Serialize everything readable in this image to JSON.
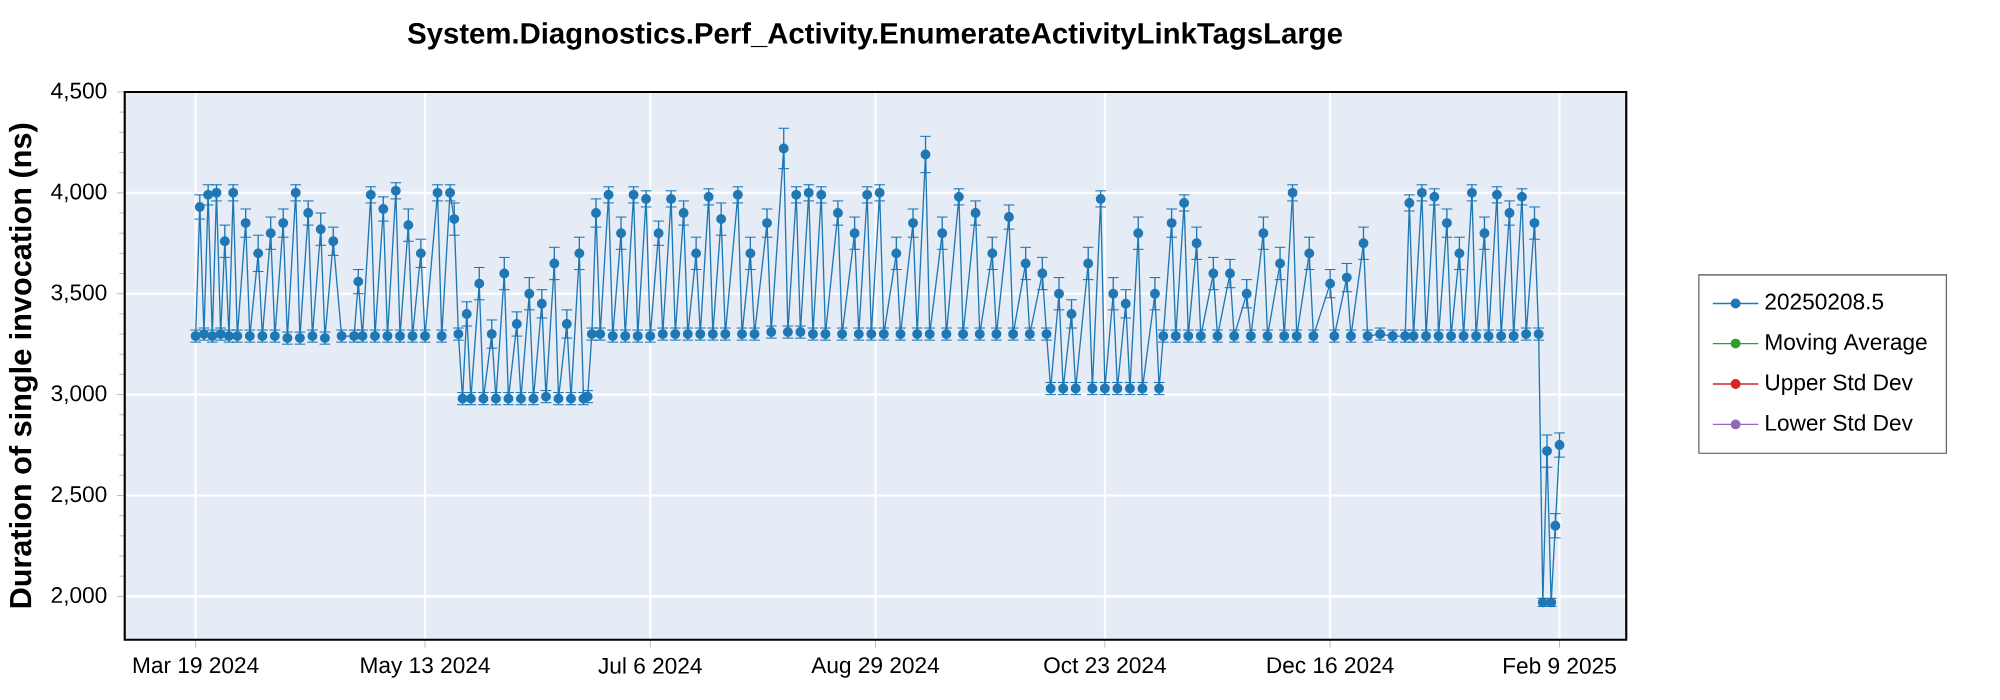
{
  "chart_data": {
    "type": "line",
    "title": "System.Diagnostics.Perf_Activity.EnumerateActivityLinkTagsLarge",
    "ylabel": "Duration of single invocation (ns)",
    "xlim": [
      "2024-03-02",
      "2025-02-25"
    ],
    "ylim": [
      1785,
      4500
    ],
    "xticks": [
      {
        "value": "2024-03-19",
        "label": "Mar 19 2024"
      },
      {
        "value": "2024-05-13",
        "label": "May 13 2024"
      },
      {
        "value": "2024-07-06",
        "label": "Jul 6 2024"
      },
      {
        "value": "2024-08-29",
        "label": "Aug 29 2024"
      },
      {
        "value": "2024-10-23",
        "label": "Oct 23 2024"
      },
      {
        "value": "2024-12-16",
        "label": "Dec 16 2024"
      },
      {
        "value": "2025-02-09",
        "label": "Feb 9 2025"
      }
    ],
    "yticks": [
      {
        "value": 2000,
        "label": "2,000"
      },
      {
        "value": 2500,
        "label": "2,500"
      },
      {
        "value": 3000,
        "label": "3,000"
      },
      {
        "value": 3500,
        "label": "3,500"
      },
      {
        "value": 4000,
        "label": "4,000"
      },
      {
        "value": 4500,
        "label": "4,500"
      }
    ],
    "grid": true,
    "legend": "right",
    "marker": "circle",
    "line_style": "solid",
    "x": [
      "2024-03-19",
      "2024-03-20",
      "2024-03-21",
      "2024-03-22",
      "2024-03-23",
      "2024-03-24",
      "2024-03-25",
      "2024-03-26",
      "2024-03-27",
      "2024-03-28",
      "2024-03-29",
      "2024-03-31",
      "2024-04-01",
      "2024-04-03",
      "2024-04-04",
      "2024-04-06",
      "2024-04-07",
      "2024-04-09",
      "2024-04-10",
      "2024-04-12",
      "2024-04-13",
      "2024-04-15",
      "2024-04-16",
      "2024-04-18",
      "2024-04-19",
      "2024-04-21",
      "2024-04-23",
      "2024-04-26",
      "2024-04-27",
      "2024-04-28",
      "2024-04-30",
      "2024-05-01",
      "2024-05-03",
      "2024-05-04",
      "2024-05-06",
      "2024-05-07",
      "2024-05-09",
      "2024-05-10",
      "2024-05-12",
      "2024-05-13",
      "2024-05-16",
      "2024-05-17",
      "2024-05-19",
      "2024-05-20",
      "2024-05-21",
      "2024-05-22",
      "2024-05-23",
      "2024-05-24",
      "2024-05-26",
      "2024-05-27",
      "2024-05-29",
      "2024-05-30",
      "2024-06-01",
      "2024-06-02",
      "2024-06-04",
      "2024-06-05",
      "2024-06-07",
      "2024-06-08",
      "2024-06-10",
      "2024-06-11",
      "2024-06-13",
      "2024-06-14",
      "2024-06-16",
      "2024-06-17",
      "2024-06-19",
      "2024-06-20",
      "2024-06-21",
      "2024-06-22",
      "2024-06-23",
      "2024-06-24",
      "2024-06-26",
      "2024-06-27",
      "2024-06-29",
      "2024-06-30",
      "2024-07-02",
      "2024-07-03",
      "2024-07-05",
      "2024-07-06",
      "2024-07-08",
      "2024-07-09",
      "2024-07-11",
      "2024-07-12",
      "2024-07-14",
      "2024-07-15",
      "2024-07-17",
      "2024-07-18",
      "2024-07-20",
      "2024-07-21",
      "2024-07-23",
      "2024-07-24",
      "2024-07-27",
      "2024-07-28",
      "2024-07-30",
      "2024-07-31",
      "2024-08-03",
      "2024-08-04",
      "2024-08-07",
      "2024-08-08",
      "2024-08-10",
      "2024-08-11",
      "2024-08-13",
      "2024-08-14",
      "2024-08-16",
      "2024-08-17",
      "2024-08-20",
      "2024-08-21",
      "2024-08-24",
      "2024-08-25",
      "2024-08-27",
      "2024-08-28",
      "2024-08-30",
      "2024-08-31",
      "2024-09-03",
      "2024-09-04",
      "2024-09-07",
      "2024-09-08",
      "2024-09-10",
      "2024-09-11",
      "2024-09-14",
      "2024-09-15",
      "2024-09-18",
      "2024-09-19",
      "2024-09-22",
      "2024-09-23",
      "2024-09-26",
      "2024-09-27",
      "2024-09-30",
      "2024-10-01",
      "2024-10-04",
      "2024-10-05",
      "2024-10-08",
      "2024-10-09",
      "2024-10-10",
      "2024-10-12",
      "2024-10-13",
      "2024-10-15",
      "2024-10-16",
      "2024-10-19",
      "2024-10-20",
      "2024-10-22",
      "2024-10-23",
      "2024-10-25",
      "2024-10-26",
      "2024-10-28",
      "2024-10-29",
      "2024-10-31",
      "2024-11-01",
      "2024-11-04",
      "2024-11-05",
      "2024-11-06",
      "2024-11-08",
      "2024-11-09",
      "2024-11-11",
      "2024-11-12",
      "2024-11-14",
      "2024-11-15",
      "2024-11-18",
      "2024-11-19",
      "2024-11-22",
      "2024-11-23",
      "2024-11-26",
      "2024-11-27",
      "2024-11-30",
      "2024-12-01",
      "2024-12-04",
      "2024-12-05",
      "2024-12-07",
      "2024-12-08",
      "2024-12-11",
      "2024-12-12",
      "2024-12-16",
      "2024-12-17",
      "2024-12-20",
      "2024-12-21",
      "2024-12-24",
      "2024-12-25",
      "2024-12-28",
      "2024-12-31",
      "2025-01-03",
      "2025-01-04",
      "2025-01-05",
      "2025-01-07",
      "2025-01-08",
      "2025-01-10",
      "2025-01-11",
      "2025-01-13",
      "2025-01-14",
      "2025-01-16",
      "2025-01-17",
      "2025-01-19",
      "2025-01-20",
      "2025-01-22",
      "2025-01-23",
      "2025-01-25",
      "2025-01-26",
      "2025-01-28",
      "2025-01-29",
      "2025-01-31",
      "2025-02-01",
      "2025-02-03",
      "2025-02-04",
      "2025-02-05",
      "2025-02-06",
      "2025-02-07",
      "2025-02-08",
      "2025-02-09"
    ],
    "series": [
      {
        "name": "20250208.5",
        "color": "#1f77b4",
        "values": [
          3290,
          3930,
          3300,
          3990,
          3290,
          4000,
          3300,
          3760,
          3290,
          4000,
          3290,
          3850,
          3290,
          3700,
          3290,
          3800,
          3290,
          3850,
          3280,
          4000,
          3280,
          3900,
          3290,
          3820,
          3280,
          3760,
          3290,
          3290,
          3560,
          3290,
          3990,
          3290,
          3920,
          3290,
          4010,
          3290,
          3840,
          3290,
          3700,
          3290,
          4000,
          3290,
          4000,
          3870,
          3300,
          2980,
          3400,
          2980,
          3550,
          2980,
          3300,
          2980,
          3600,
          2980,
          3350,
          2980,
          3500,
          2980,
          3450,
          2990,
          3650,
          2980,
          3350,
          2980,
          3700,
          2980,
          2990,
          3300,
          3900,
          3300,
          3990,
          3290,
          3800,
          3290,
          3990,
          3290,
          3970,
          3290,
          3800,
          3300,
          3970,
          3300,
          3900,
          3300,
          3700,
          3300,
          3980,
          3300,
          3870,
          3300,
          3990,
          3300,
          3700,
          3300,
          3850,
          3310,
          4220,
          3310,
          3990,
          3310,
          4000,
          3300,
          3990,
          3300,
          3900,
          3300,
          3800,
          3300,
          3990,
          3300,
          4000,
          3300,
          3700,
          3300,
          3850,
          3300,
          4190,
          3300,
          3800,
          3300,
          3980,
          3300,
          3900,
          3300,
          3700,
          3300,
          3880,
          3300,
          3650,
          3300,
          3600,
          3300,
          3030,
          3500,
          3030,
          3400,
          3030,
          3650,
          3030,
          3970,
          3030,
          3500,
          3030,
          3450,
          3030,
          3800,
          3030,
          3500,
          3030,
          3290,
          3850,
          3290,
          3950,
          3290,
          3750,
          3290,
          3600,
          3290,
          3600,
          3290,
          3500,
          3290,
          3800,
          3290,
          3650,
          3290,
          4000,
          3290,
          3700,
          3290,
          3550,
          3290,
          3580,
          3290,
          3750,
          3290,
          3300,
          3290,
          3290,
          3950,
          3290,
          4000,
          3290,
          3980,
          3290,
          3850,
          3290,
          3700,
          3290,
          4000,
          3290,
          3800,
          3290,
          3990,
          3290,
          3900,
          3290,
          3980,
          3300,
          3850,
          3300,
          1970,
          2720,
          1970,
          2350,
          2750
        ],
        "errors": [
          30,
          60,
          30,
          50,
          30,
          40,
          30,
          80,
          30,
          40,
          30,
          70,
          30,
          90,
          30,
          80,
          30,
          70,
          30,
          40,
          30,
          60,
          30,
          80,
          30,
          70,
          30,
          30,
          60,
          30,
          40,
          30,
          60,
          30,
          40,
          30,
          80,
          30,
          70,
          30,
          40,
          30,
          40,
          80,
          30,
          30,
          60,
          30,
          80,
          30,
          70,
          30,
          80,
          30,
          60,
          30,
          80,
          30,
          70,
          30,
          80,
          30,
          70,
          30,
          80,
          30,
          30,
          30,
          70,
          30,
          40,
          30,
          80,
          30,
          40,
          30,
          40,
          30,
          60,
          30,
          40,
          30,
          60,
          30,
          80,
          30,
          40,
          30,
          80,
          30,
          40,
          30,
          80,
          30,
          70,
          30,
          100,
          30,
          40,
          30,
          40,
          30,
          40,
          30,
          60,
          30,
          80,
          30,
          40,
          30,
          40,
          30,
          80,
          30,
          70,
          30,
          90,
          30,
          80,
          30,
          40,
          30,
          60,
          30,
          80,
          30,
          60,
          30,
          80,
          30,
          80,
          30,
          30,
          80,
          30,
          70,
          30,
          80,
          30,
          40,
          30,
          80,
          30,
          70,
          30,
          80,
          30,
          80,
          30,
          30,
          70,
          30,
          40,
          30,
          80,
          30,
          80,
          30,
          70,
          30,
          70,
          30,
          80,
          30,
          80,
          30,
          40,
          30,
          80,
          30,
          70,
          30,
          70,
          30,
          80,
          30,
          30,
          30,
          30,
          40,
          30,
          40,
          30,
          40,
          30,
          70,
          30,
          80,
          30,
          40,
          30,
          80,
          30,
          40,
          30,
          60,
          30,
          40,
          30,
          80,
          30,
          20,
          80,
          20,
          60,
          60
        ]
      },
      {
        "name": "Moving Average",
        "color": "#2ca02c",
        "values": [
          null,
          null,
          null,
          null,
          null,
          null,
          null,
          null,
          null,
          null,
          null,
          null,
          null,
          null,
          null,
          null,
          null,
          null,
          null,
          null,
          null,
          null,
          null,
          null,
          null,
          null,
          null,
          null,
          null,
          null,
          null,
          null,
          null,
          null,
          null,
          null,
          null,
          null,
          null,
          null,
          null,
          null,
          null,
          null,
          null,
          null,
          null,
          null,
          null,
          null,
          null,
          null,
          null,
          null,
          null,
          null,
          null,
          null,
          null,
          null,
          null,
          null,
          null,
          null,
          null,
          null,
          null,
          null,
          null,
          null,
          null,
          null,
          null,
          null,
          null,
          null,
          null,
          null,
          null,
          null,
          null,
          null,
          null,
          null,
          null,
          null,
          null,
          null,
          null,
          null,
          null,
          null,
          null,
          null,
          null,
          null,
          null,
          null,
          null,
          null,
          null,
          null,
          null,
          null,
          null,
          null,
          null,
          null,
          null,
          null,
          null,
          null,
          null,
          null,
          null,
          null,
          null,
          null,
          null,
          null,
          null,
          null,
          null,
          null,
          null,
          null,
          null,
          null,
          null,
          null,
          null,
          null,
          null,
          null,
          null,
          null,
          null,
          null,
          null,
          null,
          null,
          null,
          null,
          null,
          null,
          null,
          null,
          null,
          null,
          null,
          null,
          null,
          null,
          null,
          null,
          null,
          null,
          null,
          null,
          null,
          null,
          null,
          null,
          null,
          null,
          null,
          null,
          null,
          null,
          null,
          null,
          null,
          null,
          null,
          null,
          null,
          null,
          null,
          null,
          null,
          null,
          null,
          null,
          null,
          null,
          null,
          null,
          null,
          null,
          null,
          null,
          null,
          null,
          null,
          null,
          null,
          null,
          null,
          null,
          null,
          null,
          null,
          null,
          null,
          null,
          null
        ]
      },
      {
        "name": "Upper Std Dev",
        "color": "#d62728",
        "values": [
          null,
          null,
          null,
          null,
          null,
          null,
          null,
          null,
          null,
          null,
          null,
          null,
          null,
          null,
          null,
          null,
          null,
          null,
          null,
          null,
          null,
          null,
          null,
          null,
          null,
          null,
          null,
          null,
          null,
          null,
          null,
          null,
          null,
          null,
          null,
          null,
          null,
          null,
          null,
          null,
          null,
          null,
          null,
          null,
          null,
          null,
          null,
          null,
          null,
          null,
          null,
          null,
          null,
          null,
          null,
          null,
          null,
          null,
          null,
          null,
          null,
          null,
          null,
          null,
          null,
          null,
          null,
          null,
          null,
          null,
          null,
          null,
          null,
          null,
          null,
          null,
          null,
          null,
          null,
          null,
          null,
          null,
          null,
          null,
          null,
          null,
          null,
          null,
          null,
          null,
          null,
          null,
          null,
          null,
          null,
          null,
          null,
          null,
          null,
          null,
          null,
          null,
          null,
          null,
          null,
          null,
          null,
          null,
          null,
          null,
          null,
          null,
          null,
          null,
          null,
          null,
          null,
          null,
          null,
          null,
          null,
          null,
          null,
          null,
          null,
          null,
          null,
          null,
          null,
          null,
          null,
          null,
          null,
          null,
          null,
          null,
          null,
          null,
          null,
          null,
          null,
          null,
          null,
          null,
          null,
          null,
          null,
          null,
          null,
          null,
          null,
          null,
          null,
          null,
          null,
          null,
          null,
          null,
          null,
          null,
          null,
          null,
          null,
          null,
          null,
          null,
          null,
          null,
          null,
          null,
          null,
          null,
          null,
          null,
          null,
          null,
          null,
          null,
          null,
          null,
          null,
          null,
          null,
          null,
          null,
          null,
          null,
          null,
          null,
          null,
          null,
          null,
          null,
          null,
          null,
          null,
          null,
          null,
          null,
          null,
          null,
          null,
          null,
          null,
          null,
          null
        ]
      },
      {
        "name": "Lower Std Dev",
        "color": "#9467bd",
        "values": [
          null,
          null,
          null,
          null,
          null,
          null,
          null,
          null,
          null,
          null,
          null,
          null,
          null,
          null,
          null,
          null,
          null,
          null,
          null,
          null,
          null,
          null,
          null,
          null,
          null,
          null,
          null,
          null,
          null,
          null,
          null,
          null,
          null,
          null,
          null,
          null,
          null,
          null,
          null,
          null,
          null,
          null,
          null,
          null,
          null,
          null,
          null,
          null,
          null,
          null,
          null,
          null,
          null,
          null,
          null,
          null,
          null,
          null,
          null,
          null,
          null,
          null,
          null,
          null,
          null,
          null,
          null,
          null,
          null,
          null,
          null,
          null,
          null,
          null,
          null,
          null,
          null,
          null,
          null,
          null,
          null,
          null,
          null,
          null,
          null,
          null,
          null,
          null,
          null,
          null,
          null,
          null,
          null,
          null,
          null,
          null,
          null,
          null,
          null,
          null,
          null,
          null,
          null,
          null,
          null,
          null,
          null,
          null,
          null,
          null,
          null,
          null,
          null,
          null,
          null,
          null,
          null,
          null,
          null,
          null,
          null,
          null,
          null,
          null,
          null,
          null,
          null,
          null,
          null,
          null,
          null,
          null,
          null,
          null,
          null,
          null,
          null,
          null,
          null,
          null,
          null,
          null,
          null,
          null,
          null,
          null,
          null,
          null,
          null,
          null,
          null,
          null,
          null,
          null,
          null,
          null,
          null,
          null,
          null,
          null,
          null,
          null,
          null,
          null,
          null,
          null,
          null,
          null,
          null,
          null,
          null,
          null,
          null,
          null,
          null,
          null,
          null,
          null,
          null,
          null,
          null,
          null,
          null,
          null,
          null,
          null,
          null,
          null,
          null,
          null,
          null,
          null,
          null,
          null,
          null,
          null,
          null,
          null,
          null,
          null,
          null,
          null,
          null,
          null,
          null,
          null
        ]
      }
    ]
  }
}
